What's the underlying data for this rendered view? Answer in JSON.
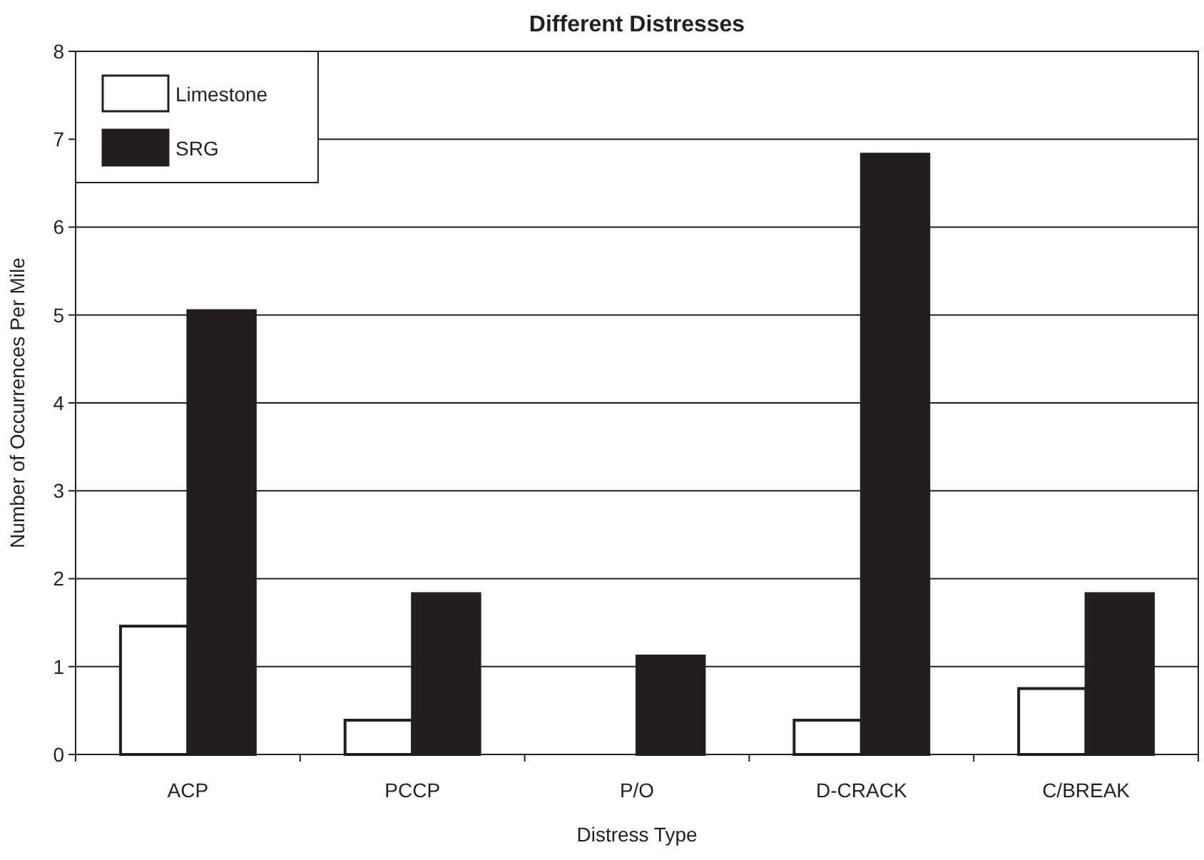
{
  "chart_data": {
    "type": "bar",
    "title": "Different Distresses",
    "xlabel": "Distress Type",
    "ylabel": "Number of Occurrences Per Mile",
    "categories": [
      "ACP",
      "PCCP",
      "P/O",
      "D-CRACK",
      "C/BREAK"
    ],
    "series": [
      {
        "name": "Limestone",
        "color": "#ffffff",
        "values": [
          1.46,
          0.39,
          0,
          0.39,
          0.75
        ]
      },
      {
        "name": "SRG",
        "color": "#231f20",
        "values": [
          5.05,
          1.83,
          1.12,
          6.83,
          1.83
        ]
      }
    ],
    "ylim": [
      0,
      8
    ],
    "yticks": [
      0,
      1,
      2,
      3,
      4,
      5,
      6,
      7,
      8
    ],
    "grid": "y",
    "legend": "top left"
  }
}
